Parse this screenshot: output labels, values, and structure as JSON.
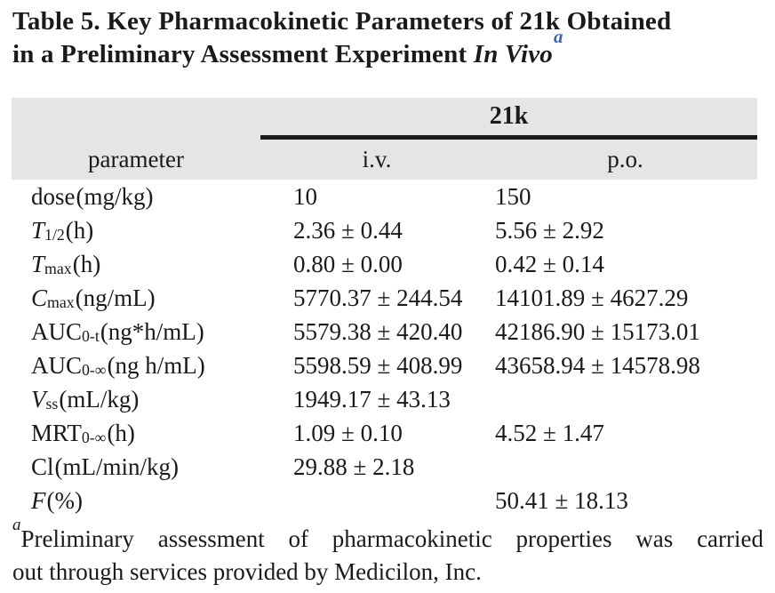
{
  "title": {
    "line1": "Table 5. Key Pharmacokinetic Parameters of 21k Obtained",
    "line2_roman": "in a Preliminary Assessment Experiment ",
    "line2_italic": "In Vivo",
    "footnote_marker": "a"
  },
  "table": {
    "compound_header": "21k",
    "column_headers": {
      "parameter": "parameter",
      "iv": "i.v.",
      "po": "p.o."
    },
    "rows": [
      {
        "label_main": "dose",
        "label_sub": "",
        "label_rest": " (mg/kg)",
        "iv": "10",
        "po": "150"
      },
      {
        "label_main": "T",
        "label_sub": "1/2",
        "label_rest": " (h)",
        "iv": "2.36 ± 0.44",
        "po": "5.56 ± 2.92"
      },
      {
        "label_main": "T",
        "label_sub": "max",
        "label_rest": " (h)",
        "iv": "0.80 ± 0.00",
        "po": "0.42 ± 0.14"
      },
      {
        "label_main": "C",
        "label_sub": "max",
        "label_rest": " (ng/mL)",
        "iv": "5770.37 ± 244.54",
        "po": "14101.89 ± 4627.29"
      },
      {
        "label_main": "AUC",
        "label_sub": "0-t",
        "label_rest": " (ng*h/mL)",
        "iv": "5579.38 ± 420.40",
        "po": "42186.90 ± 15173.01"
      },
      {
        "label_main": "AUC",
        "label_sub": "0-∞",
        "label_rest": " (ng h/mL)",
        "iv": "5598.59 ± 408.99",
        "po": "43658.94 ± 14578.98"
      },
      {
        "label_main": "V",
        "label_sub": "ss",
        "label_rest": " (mL/kg)",
        "iv": "1949.17 ± 43.13",
        "po": ""
      },
      {
        "label_main": "MRT",
        "label_sub": "0-∞",
        "label_rest": " (h)",
        "iv": "1.09 ± 0.10",
        "po": "4.52 ± 1.47"
      },
      {
        "label_main": "Cl",
        "label_sub": "",
        "label_rest": " (mL/min/kg)",
        "iv": "29.88 ± 2.18",
        "po": ""
      },
      {
        "label_main": "F",
        "label_sub": "",
        "label_rest": " (%)",
        "iv": "",
        "po": "50.41 ± 18.13"
      }
    ]
  },
  "footnote": {
    "marker": "a",
    "line1": "Preliminary assessment of pharmacokinetic properties was carried",
    "line2": "out through services provided by Medicilon, Inc."
  },
  "colors": {
    "accent_blue": "#3465b0",
    "header_band": "#e5e5e5",
    "text": "#1a1a1a",
    "rule": "#1c1c1c"
  }
}
